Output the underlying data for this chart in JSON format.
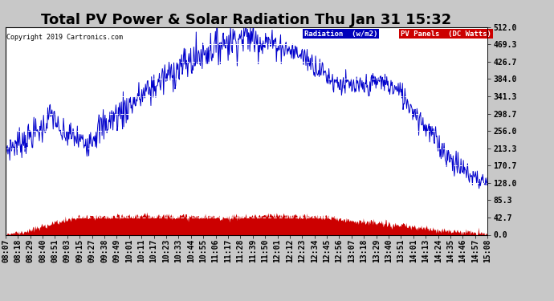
{
  "title": "Total PV Power & Solar Radiation Thu Jan 31 15:32",
  "copyright_text": "Copyright 2019 Cartronics.com",
  "legend_label_radiation": "Radiation  (w/m2)",
  "legend_label_pv": "PV Panels  (DC Watts)",
  "legend_color_radiation": "#0000bb",
  "legend_color_pv": "#cc0000",
  "ylabel_right_values": [
    0.0,
    42.7,
    85.3,
    128.0,
    170.7,
    213.3,
    256.0,
    298.7,
    341.3,
    384.0,
    426.7,
    469.3,
    512.0
  ],
  "ymax": 512.0,
  "ymin": 0.0,
  "background_color": "#c8c8c8",
  "plot_bg_color": "#ffffff",
  "line_color_radiation": "#0000cc",
  "fill_color_pv": "#cc0000",
  "title_fontsize": 13,
  "tick_label_fontsize": 7,
  "grid_color": "#aaaaaa",
  "tick_labels": [
    "08:07",
    "08:18",
    "08:29",
    "08:40",
    "08:51",
    "09:03",
    "09:15",
    "09:27",
    "09:38",
    "09:49",
    "10:01",
    "10:11",
    "10:17",
    "10:23",
    "10:33",
    "10:44",
    "10:55",
    "11:06",
    "11:17",
    "11:28",
    "11:39",
    "11:50",
    "12:01",
    "12:12",
    "12:23",
    "12:34",
    "12:45",
    "12:56",
    "13:07",
    "13:18",
    "13:29",
    "13:40",
    "13:51",
    "14:01",
    "14:13",
    "14:24",
    "14:35",
    "14:46",
    "14:57",
    "15:08"
  ]
}
